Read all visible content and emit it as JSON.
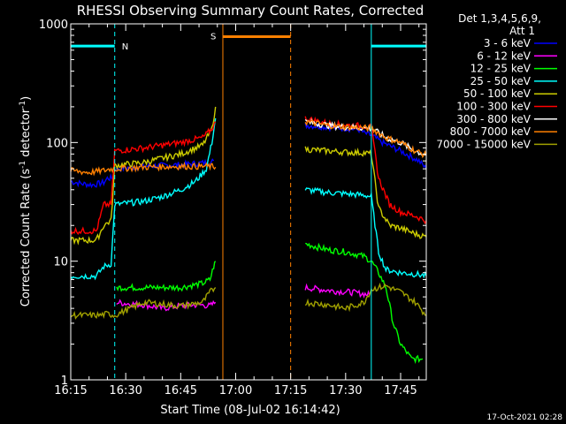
{
  "chart_data": {
    "type": "line",
    "title": "RHESSI Observing Summary Count Rates, Corrected",
    "xlabel": "Start Time (08-Jul-02 16:14:42)",
    "ylabel_main": "Corrected Count Rate (s",
    "ylabel_sup1": "-1",
    "ylabel_mid": " detector",
    "ylabel_sup2": "-1",
    "ylabel_end": ")",
    "yscale": "log",
    "ylim": [
      1,
      1000
    ],
    "xlim_minutes": [
      0,
      97
    ],
    "x_ticks": [
      {
        "label": "16:15",
        "m": 0
      },
      {
        "label": "16:30",
        "m": 15
      },
      {
        "label": "16:45",
        "m": 30
      },
      {
        "label": "17:00",
        "m": 45
      },
      {
        "label": "17:15",
        "m": 60
      },
      {
        "label": "17:30",
        "m": 75
      },
      {
        "label": "17:45",
        "m": 90
      }
    ],
    "y_ticks": [
      {
        "label": "1",
        "v": 1
      },
      {
        "label": "10",
        "v": 10
      },
      {
        "label": "100",
        "v": 100
      },
      {
        "label": "1000",
        "v": 1000
      }
    ],
    "legend": {
      "header1": "Det 1,3,4,5,6,9,",
      "header2": "Att 1",
      "position": "right"
    },
    "series": [
      {
        "name": "3 - 6 keV",
        "color": "#0000ff",
        "segments": [
          [
            [
              0,
              47
            ],
            [
              3,
              45
            ],
            [
              6,
              44
            ],
            [
              9,
              46
            ],
            [
              10,
              50
            ],
            [
              11.5,
              50
            ],
            [
              12,
              60
            ],
            [
              20,
              63
            ],
            [
              30,
              65
            ],
            [
              38,
              68
            ],
            [
              39,
              70
            ]
          ],
          [
            [
              64,
              140
            ],
            [
              70,
              135
            ],
            [
              75,
              132
            ],
            [
              79,
              128
            ],
            [
              80,
              120
            ],
            [
              82,
              115
            ],
            [
              85,
              100
            ],
            [
              90,
              85
            ],
            [
              95,
              70
            ],
            [
              97,
              60
            ]
          ]
        ]
      },
      {
        "name": "6 - 12 keV",
        "color": "#ff00ff",
        "segments": [
          [
            [
              12.5,
              4.5
            ],
            [
              15,
              4.4
            ],
            [
              20,
              4.3
            ],
            [
              25,
              4.0
            ],
            [
              30,
              4.2
            ],
            [
              35,
              4.3
            ],
            [
              38,
              4.2
            ],
            [
              39.5,
              4.5
            ]
          ],
          [
            [
              64,
              6
            ],
            [
              68,
              5.8
            ],
            [
              72,
              5.6
            ],
            [
              76,
              5.5
            ],
            [
              80,
              5.3
            ],
            [
              81.5,
              5.2
            ]
          ]
        ]
      },
      {
        "name": "12 - 25 keV",
        "color": "#00ff00",
        "segments": [
          [
            [
              12.5,
              6
            ],
            [
              20,
              6
            ],
            [
              30,
              6
            ],
            [
              36,
              6.5
            ],
            [
              38,
              7
            ],
            [
              39,
              9
            ],
            [
              39.5,
              10
            ]
          ],
          [
            [
              64,
              14
            ],
            [
              70,
              12.5
            ],
            [
              75,
              12
            ],
            [
              80,
              11
            ],
            [
              82,
              10
            ],
            [
              84,
              8
            ],
            [
              86,
              6
            ],
            [
              88,
              3
            ],
            [
              90,
              2
            ],
            [
              93,
              1.5
            ],
            [
              96,
              1.5
            ]
          ]
        ]
      },
      {
        "name": "25 - 50 keV",
        "color": "#00ffff",
        "segments": [
          [
            [
              0,
              7.5
            ],
            [
              4,
              7.5
            ],
            [
              7,
              7.5
            ],
            [
              9,
              9
            ],
            [
              11,
              9.5
            ],
            [
              12,
              30
            ],
            [
              20,
              32
            ],
            [
              25,
              35
            ],
            [
              30,
              40
            ],
            [
              34,
              47
            ],
            [
              37,
              60
            ],
            [
              38.5,
              100
            ],
            [
              39.5,
              160
            ]
          ],
          [
            [
              64,
              40
            ],
            [
              70,
              38
            ],
            [
              75,
              37
            ],
            [
              80,
              36
            ],
            [
              82,
              35
            ],
            [
              84,
              12
            ],
            [
              86,
              8.5
            ],
            [
              90,
              8
            ],
            [
              94,
              7.8
            ],
            [
              97,
              7.5
            ]
          ]
        ]
      },
      {
        "name": "50 - 100 keV",
        "color": "#cccc00",
        "segments": [
          [
            [
              0,
              15
            ],
            [
              3,
              15
            ],
            [
              7,
              15
            ],
            [
              9,
              20
            ],
            [
              11,
              22
            ],
            [
              12,
              64
            ],
            [
              20,
              68
            ],
            [
              30,
              80
            ],
            [
              36,
              95
            ],
            [
              38.5,
              130
            ],
            [
              39.5,
              200
            ]
          ],
          [
            [
              64,
              88
            ],
            [
              70,
              85
            ],
            [
              75,
              83
            ],
            [
              80,
              82
            ],
            [
              82,
              80
            ],
            [
              84,
              28
            ],
            [
              87,
              20
            ],
            [
              90,
              19
            ],
            [
              94,
              17
            ],
            [
              97,
              16
            ]
          ]
        ]
      },
      {
        "name": "100 - 300 keV",
        "color": "#ff0000",
        "segments": [
          [
            [
              0,
              18
            ],
            [
              3,
              18
            ],
            [
              7,
              18
            ],
            [
              9,
              30
            ],
            [
              11,
              30
            ],
            [
              12,
              85
            ],
            [
              20,
              90
            ],
            [
              30,
              100
            ],
            [
              36,
              110
            ],
            [
              38.5,
              130
            ],
            [
              39.5,
              150
            ]
          ],
          [
            [
              64,
              160
            ],
            [
              70,
              145
            ],
            [
              75,
              140
            ],
            [
              80,
              138
            ],
            [
              82,
              135
            ],
            [
              84,
              50
            ],
            [
              87,
              30
            ],
            [
              90,
              26
            ],
            [
              94,
              24
            ],
            [
              97,
              22
            ]
          ]
        ]
      },
      {
        "name": "300 - 800 keV",
        "color": "#ffffff",
        "segments": [
          [
            [
              64,
              150
            ],
            [
              70,
              140
            ],
            [
              75,
              135
            ],
            [
              80,
              133
            ],
            [
              82,
              132
            ],
            [
              86,
              110
            ],
            [
              90,
              100
            ],
            [
              94,
              85
            ],
            [
              97,
              78
            ]
          ]
        ]
      },
      {
        "name": "800 - 7000 keV",
        "color": "#ff8000",
        "segments": [
          [
            [
              0,
              58
            ],
            [
              5,
              56
            ],
            [
              9,
              58
            ],
            [
              11,
              60
            ],
            [
              12,
              60
            ],
            [
              20,
              62
            ],
            [
              30,
              63
            ],
            [
              38,
              63
            ],
            [
              39.5,
              62
            ]
          ],
          [
            [
              64,
              150
            ],
            [
              70,
              140
            ],
            [
              75,
              135
            ],
            [
              80,
              133
            ],
            [
              82,
              132
            ],
            [
              86,
              110
            ],
            [
              90,
              100
            ],
            [
              94,
              85
            ],
            [
              97,
              78
            ]
          ]
        ]
      },
      {
        "name": "7000 - 15000 keV",
        "color": "#a0a000",
        "segments": [
          [
            [
              0,
              3.5
            ],
            [
              4,
              3.5
            ],
            [
              8,
              3.5
            ],
            [
              10,
              3.6
            ],
            [
              12,
              3.5
            ],
            [
              20,
              4.5
            ],
            [
              30,
              4.2
            ],
            [
              36,
              4.5
            ],
            [
              38,
              5.5
            ],
            [
              39.5,
              6
            ]
          ],
          [
            [
              64,
              4.5
            ],
            [
              70,
              4.3
            ],
            [
              75,
              4.0
            ],
            [
              80,
              4.5
            ],
            [
              82,
              5.8
            ],
            [
              86,
              6.2
            ],
            [
              90,
              5.5
            ],
            [
              94,
              4.5
            ],
            [
              97,
              3.5
            ]
          ]
        ]
      }
    ],
    "annotations": {
      "n_label": "N",
      "s_label": "S",
      "n_color": "#00ffff",
      "s_color": "#ff8000",
      "night_bars": [
        {
          "m0": 0,
          "m1": 12,
          "v": 650
        },
        {
          "m0": 82,
          "m1": 97,
          "v": 650
        }
      ],
      "night_edges": [
        {
          "m": 0,
          "style": "solid"
        },
        {
          "m": 12,
          "style": "dashed"
        },
        {
          "m": 82,
          "style": "solid"
        },
        {
          "m": 97,
          "style": "dashed"
        }
      ],
      "saa_bar": {
        "m0": 41.5,
        "m1": 60,
        "v": 780
      },
      "saa_edges": [
        {
          "m": 41.5,
          "style": "solid"
        },
        {
          "m": 60,
          "style": "dashed"
        }
      ]
    },
    "timestamp": "17-Oct-2021 02:28"
  }
}
